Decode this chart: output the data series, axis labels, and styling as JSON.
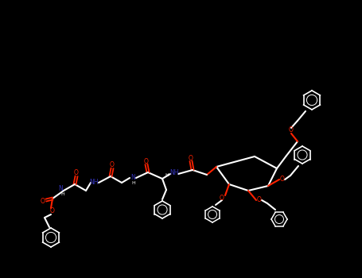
{
  "background_color": "#000000",
  "bond_color": "#ffffff",
  "oxygen_color": "#ff2200",
  "nitrogen_color": "#3333bb",
  "figsize": [
    4.55,
    3.5
  ],
  "dpi": 100
}
